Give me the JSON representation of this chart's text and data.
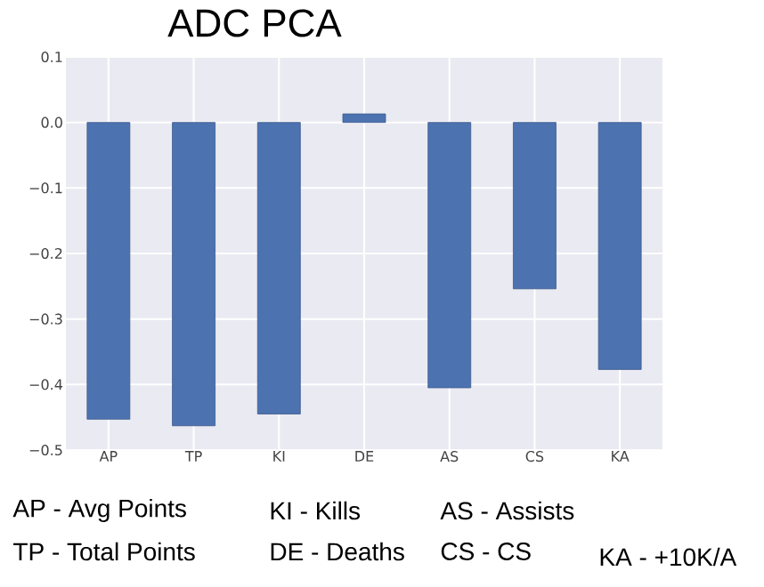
{
  "chart_data": {
    "type": "bar",
    "title": "ADC PCA",
    "categories": [
      "AP",
      "TP",
      "KI",
      "DE",
      "AS",
      "CS",
      "KA"
    ],
    "values": [
      -0.453,
      -0.463,
      -0.445,
      0.013,
      -0.405,
      -0.254,
      -0.377
    ],
    "color": "#4c72b0",
    "ylim": [
      -0.5,
      0.1
    ],
    "yticks": [
      {
        "value": -0.5,
        "label": "−0.5"
      },
      {
        "value": -0.4,
        "label": "−0.4"
      },
      {
        "value": -0.3,
        "label": "−0.3"
      },
      {
        "value": -0.2,
        "label": "−0.2"
      },
      {
        "value": -0.1,
        "label": "−0.1"
      },
      {
        "value": 0.0,
        "label": "0.0"
      },
      {
        "value": 0.1,
        "label": "0.1"
      }
    ],
    "grid": true,
    "annotations": [
      "AP - Avg Points",
      "KI - Kills",
      "AS - Assists",
      "TP - Total Points",
      "DE - Deaths",
      "CS - CS",
      "KA - +10K/A"
    ]
  }
}
